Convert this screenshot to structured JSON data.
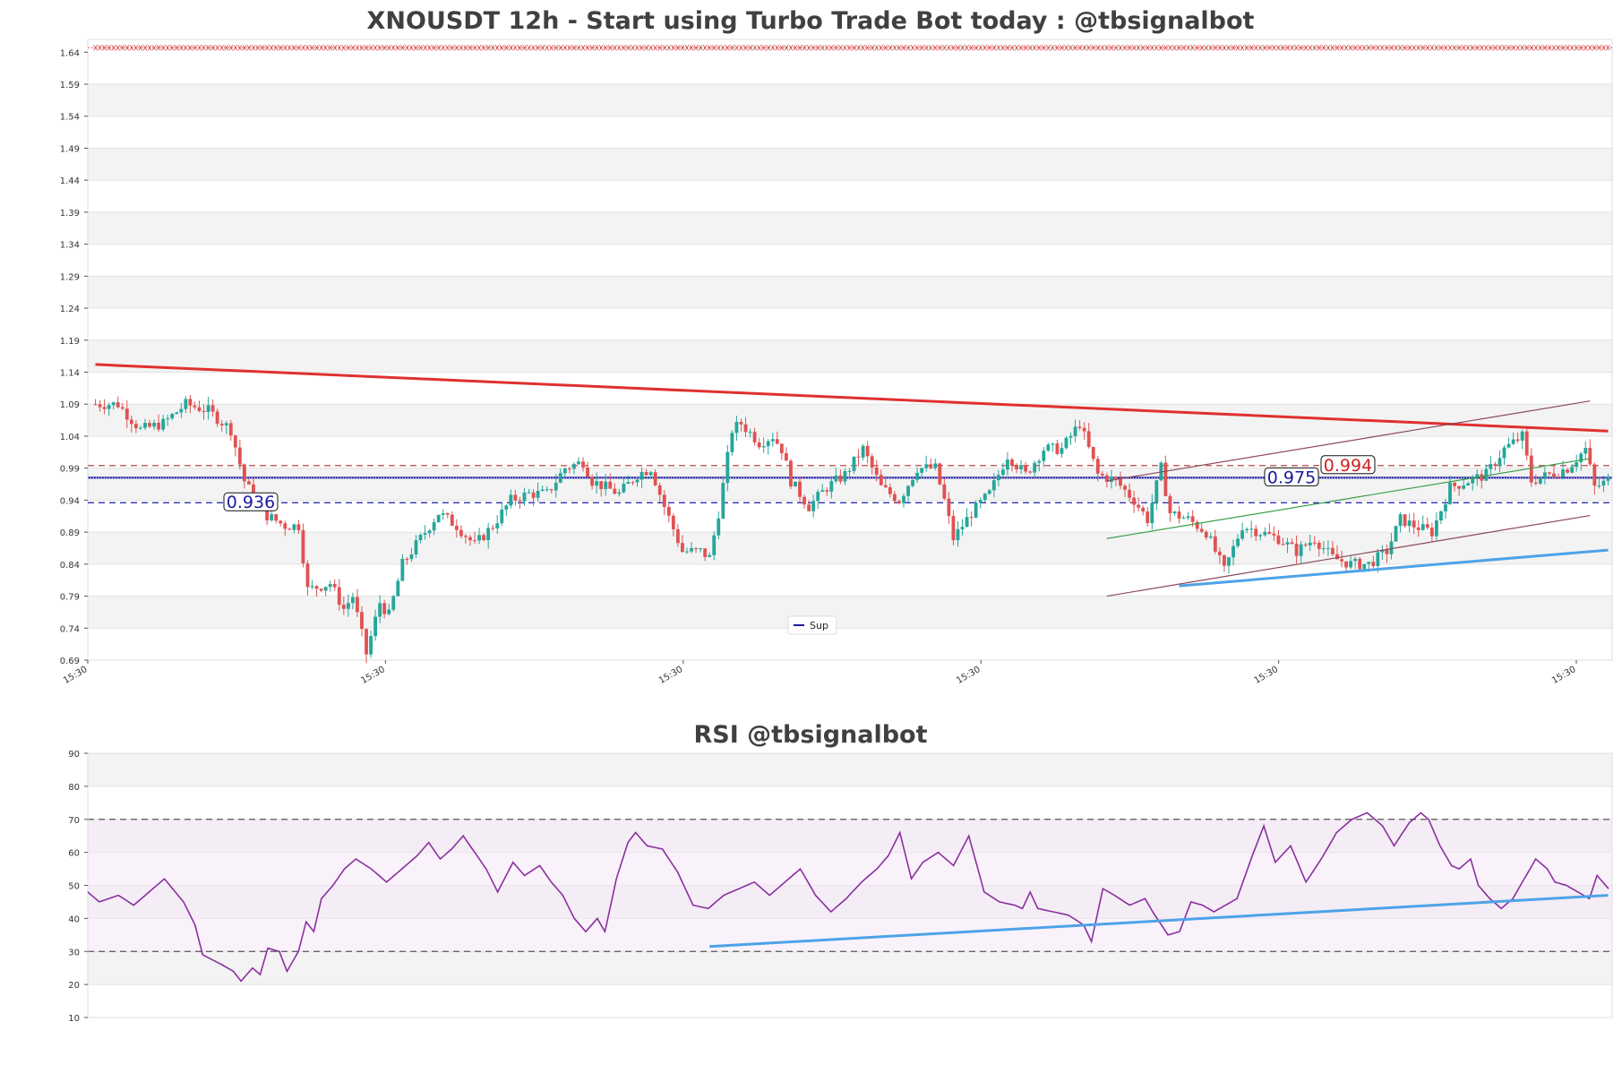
{
  "chart_data": [
    {
      "type": "candlestick",
      "title": "XNOUSDT 12h - Start using Turbo Trade Bot today : @tbsignalbot",
      "ylim": [
        0.69,
        1.66
      ],
      "y_ticks": [
        "0.69",
        "0.74",
        "0.79",
        "0.84",
        "0.89",
        "0.94",
        "0.99",
        "1.04",
        "1.09",
        "1.14",
        "1.19",
        "1.24",
        "1.29",
        "1.34",
        "1.39",
        "1.44",
        "1.49",
        "1.54",
        "1.59",
        "1.64"
      ],
      "x_tick_labels": [
        "15:30",
        "15:30",
        "15:30",
        "15:30",
        "15:30",
        "15:30"
      ],
      "grid": "horizontal alternating bands",
      "colors": {
        "up": "#26a69a",
        "down": "#e05252",
        "resistance": "#e03030",
        "support": "#4da3e8",
        "level": "#1a1aa0",
        "red_level": "#b03030"
      },
      "close_anchors": [
        [
          0,
          1.09
        ],
        [
          5,
          1.09
        ],
        [
          10,
          1.05
        ],
        [
          15,
          1.06
        ],
        [
          20,
          1.09
        ],
        [
          25,
          1.08
        ],
        [
          30,
          1.05
        ],
        [
          33,
          0.97
        ],
        [
          37,
          0.92
        ],
        [
          42,
          0.9
        ],
        [
          45,
          0.9
        ],
        [
          47,
          0.8
        ],
        [
          52,
          0.81
        ],
        [
          55,
          0.77
        ],
        [
          57,
          0.79
        ],
        [
          60,
          0.7
        ],
        [
          63,
          0.78
        ],
        [
          65,
          0.76
        ],
        [
          68,
          0.84
        ],
        [
          72,
          0.88
        ],
        [
          76,
          0.92
        ],
        [
          80,
          0.9
        ],
        [
          84,
          0.87
        ],
        [
          88,
          0.9
        ],
        [
          92,
          0.94
        ],
        [
          96,
          0.95
        ],
        [
          100,
          0.95
        ],
        [
          104,
          0.99
        ],
        [
          108,
          1.0
        ],
        [
          110,
          0.97
        ],
        [
          113,
          0.96
        ],
        [
          116,
          0.95
        ],
        [
          120,
          0.98
        ],
        [
          123,
          0.99
        ],
        [
          126,
          0.93
        ],
        [
          130,
          0.86
        ],
        [
          134,
          0.86
        ],
        [
          136,
          0.85
        ],
        [
          138,
          0.92
        ],
        [
          141,
          1.05
        ],
        [
          143,
          1.06
        ],
        [
          147,
          1.03
        ],
        [
          150,
          1.04
        ],
        [
          152,
          1.02
        ],
        [
          154,
          0.97
        ],
        [
          158,
          0.93
        ],
        [
          162,
          0.96
        ],
        [
          166,
          0.98
        ],
        [
          170,
          1.02
        ],
        [
          174,
          0.96
        ],
        [
          178,
          0.94
        ],
        [
          182,
          0.99
        ],
        [
          186,
          0.99
        ],
        [
          188,
          0.94
        ],
        [
          190,
          0.88
        ],
        [
          194,
          0.92
        ],
        [
          198,
          0.95
        ],
        [
          202,
          1.01
        ],
        [
          206,
          0.98
        ],
        [
          210,
          1.02
        ],
        [
          214,
          1.02
        ],
        [
          218,
          1.06
        ],
        [
          222,
          0.98
        ],
        [
          226,
          0.97
        ],
        [
          230,
          0.94
        ],
        [
          233,
          0.91
        ],
        [
          236,
          0.99
        ],
        [
          238,
          0.92
        ],
        [
          242,
          0.91
        ],
        [
          246,
          0.89
        ],
        [
          250,
          0.83
        ],
        [
          254,
          0.9
        ],
        [
          258,
          0.89
        ],
        [
          262,
          0.88
        ],
        [
          266,
          0.86
        ],
        [
          270,
          0.88
        ],
        [
          274,
          0.85
        ],
        [
          278,
          0.84
        ],
        [
          282,
          0.84
        ],
        [
          286,
          0.86
        ],
        [
          289,
          0.91
        ],
        [
          292,
          0.9
        ],
        [
          296,
          0.89
        ],
        [
          300,
          0.96
        ],
        [
          304,
          0.97
        ],
        [
          308,
          0.98
        ],
        [
          312,
          1.02
        ],
        [
          316,
          1.04
        ],
        [
          318,
          0.97
        ],
        [
          322,
          0.98
        ],
        [
          326,
          0.99
        ],
        [
          330,
          1.02
        ],
        [
          332,
          0.96
        ],
        [
          335,
          0.97
        ]
      ],
      "levels": [
        {
          "value": 0.994,
          "label": "0.994",
          "style": "dashed",
          "color": "#b03030"
        },
        {
          "value": 0.975,
          "label": "0.975",
          "style": "solid",
          "color": "#1a1aa0"
        },
        {
          "value": 0.936,
          "label": "0.936",
          "style": "dashed",
          "color": "#1a1aa0"
        }
      ],
      "resistance_line": [
        [
          0,
          1.152
        ],
        [
          335,
          1.048
        ]
      ],
      "support_line": [
        [
          240,
          0.806
        ],
        [
          335,
          0.862
        ]
      ],
      "channel": {
        "upper": [
          [
            224,
            0.97
          ],
          [
            331,
            1.095
          ]
        ],
        "lower": [
          [
            224,
            0.79
          ],
          [
            331,
            0.916
          ]
        ],
        "mid": [
          [
            224,
            0.88
          ],
          [
            331,
            1.005
          ]
        ]
      },
      "legend": {
        "entries": [
          "Sup"
        ],
        "placement": "lower center"
      }
    },
    {
      "type": "line",
      "title": "RSI @tbsignalbot",
      "ylim": [
        10,
        90
      ],
      "y_ticks": [
        "10",
        "20",
        "30",
        "40",
        "50",
        "60",
        "70",
        "80",
        "90"
      ],
      "thresholds": [
        30,
        70
      ],
      "colors": {
        "line": "#8b2fa0",
        "trend": "#4da3e8"
      },
      "rsi_anchors": [
        [
          0,
          48
        ],
        [
          3,
          45
        ],
        [
          8,
          47
        ],
        [
          12,
          44
        ],
        [
          16,
          48
        ],
        [
          20,
          52
        ],
        [
          25,
          45
        ],
        [
          28,
          38
        ],
        [
          30,
          29
        ],
        [
          35,
          26
        ],
        [
          38,
          24
        ],
        [
          40,
          21
        ],
        [
          43,
          25
        ],
        [
          45,
          23
        ],
        [
          47,
          31
        ],
        [
          50,
          30
        ],
        [
          52,
          24
        ],
        [
          55,
          30
        ],
        [
          57,
          39
        ],
        [
          59,
          36
        ],
        [
          61,
          46
        ],
        [
          64,
          50
        ],
        [
          67,
          55
        ],
        [
          70,
          58
        ],
        [
          74,
          55
        ],
        [
          78,
          51
        ],
        [
          82,
          55
        ],
        [
          86,
          59
        ],
        [
          89,
          63
        ],
        [
          92,
          58
        ],
        [
          95,
          61
        ],
        [
          98,
          65
        ],
        [
          101,
          60
        ],
        [
          104,
          55
        ],
        [
          107,
          48
        ],
        [
          111,
          57
        ],
        [
          114,
          53
        ],
        [
          118,
          56
        ],
        [
          121,
          51
        ],
        [
          124,
          47
        ],
        [
          127,
          40
        ],
        [
          130,
          36
        ],
        [
          133,
          40
        ],
        [
          135,
          36
        ],
        [
          138,
          52
        ],
        [
          141,
          63
        ],
        [
          143,
          66
        ],
        [
          146,
          62
        ],
        [
          150,
          61
        ],
        [
          154,
          54
        ],
        [
          158,
          44
        ],
        [
          162,
          43
        ],
        [
          166,
          47
        ],
        [
          170,
          49
        ],
        [
          174,
          51
        ],
        [
          178,
          47
        ],
        [
          182,
          51
        ],
        [
          186,
          55
        ],
        [
          190,
          47
        ],
        [
          194,
          42
        ],
        [
          198,
          46
        ],
        [
          202,
          51
        ],
        [
          206,
          55
        ],
        [
          209,
          59
        ],
        [
          212,
          66
        ],
        [
          215,
          52
        ],
        [
          218,
          57
        ],
        [
          222,
          60
        ],
        [
          226,
          56
        ],
        [
          230,
          65
        ],
        [
          234,
          48
        ],
        [
          238,
          45
        ],
        [
          242,
          44
        ],
        [
          244,
          43
        ],
        [
          246,
          48
        ],
        [
          248,
          43
        ],
        [
          252,
          42
        ],
        [
          256,
          41
        ],
        [
          260,
          38
        ],
        [
          262,
          33
        ],
        [
          265,
          49
        ],
        [
          268,
          47
        ],
        [
          272,
          44
        ],
        [
          276,
          46
        ],
        [
          278,
          42
        ],
        [
          282,
          35
        ],
        [
          285,
          36
        ],
        [
          288,
          45
        ],
        [
          291,
          44
        ],
        [
          294,
          42
        ],
        [
          297,
          44
        ],
        [
          300,
          46
        ],
        [
          304,
          59
        ],
        [
          307,
          68
        ],
        [
          310,
          57
        ],
        [
          314,
          62
        ],
        [
          318,
          51
        ],
        [
          322,
          58
        ],
        [
          326,
          66
        ],
        [
          330,
          70
        ],
        [
          334,
          72
        ],
        [
          338,
          68
        ],
        [
          341,
          62
        ],
        [
          345,
          69
        ],
        [
          348,
          72
        ],
        [
          350,
          70
        ],
        [
          353,
          62
        ],
        [
          356,
          56
        ],
        [
          358,
          55
        ],
        [
          361,
          58
        ],
        [
          363,
          50
        ],
        [
          366,
          46
        ],
        [
          369,
          43
        ],
        [
          372,
          46
        ],
        [
          375,
          52
        ],
        [
          378,
          58
        ],
        [
          381,
          55
        ],
        [
          383,
          51
        ],
        [
          386,
          50
        ],
        [
          389,
          48
        ],
        [
          392,
          46
        ],
        [
          394,
          53
        ],
        [
          397,
          49
        ]
      ],
      "trend_line": [
        [
          136,
          31.5
        ],
        [
          335,
          47
        ]
      ]
    }
  ]
}
